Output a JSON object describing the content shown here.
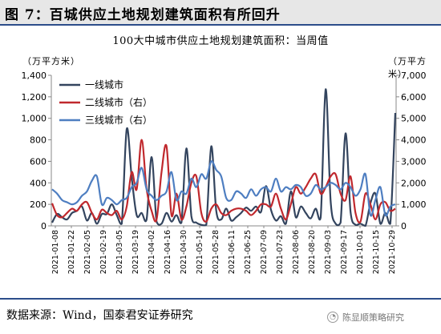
{
  "figure": {
    "title": "图 7：百城供应土地规划建筑面积有所回升",
    "source": "数据来源：Wind，国泰君安证券研究",
    "watermark": "陈显顺策略研究",
    "watermark_icon": "wechat-logo-icon"
  },
  "chart_data": {
    "type": "line",
    "title": "100大中城市供应土地规划建筑面积：当周值",
    "left_unit": "（万平方米）",
    "right_unit": "（万平方米）",
    "y_left": {
      "range": [
        0,
        1400
      ],
      "ticks": [
        "0",
        "200",
        "400",
        "600",
        "800",
        "1,000",
        "1,200",
        "1,400"
      ]
    },
    "y_right": {
      "range": [
        0,
        7000
      ],
      "ticks": [
        "0",
        "1,000",
        "2,000",
        "3,000",
        "4,000",
        "5,000",
        "6,000",
        "7,000"
      ]
    },
    "x_tick_labels": [
      "2021-01-08",
      "2021-01-22",
      "2021-02-05",
      "2021-02-19",
      "2021-03-05",
      "2021-03-19",
      "2021-04-02",
      "2021-04-16",
      "2021-04-30",
      "2021-05-14",
      "2021-05-28",
      "2021-06-11",
      "2021-06-25",
      "2021-07-09",
      "2021-07-23",
      "2021-08-06",
      "2021-08-20",
      "2021-09-03",
      "2021-09-17",
      "2021-10-01",
      "2021-10-15",
      "2021-10-29"
    ],
    "grid": false,
    "legend_position": "top-left-inside",
    "series": [
      {
        "name": "一线城市",
        "axis": "left",
        "color": "#33445e",
        "values": [
          30,
          110,
          80,
          60,
          120,
          140,
          180,
          50,
          120,
          20,
          110,
          110,
          200,
          100,
          20,
          900,
          450,
          100,
          120,
          60,
          640,
          40,
          20,
          120,
          40,
          100,
          30,
          720,
          90,
          30,
          10,
          10,
          740,
          140,
          60,
          160,
          50,
          80,
          120,
          170,
          140,
          180,
          130,
          370,
          150,
          50,
          90,
          20,
          320,
          80,
          180,
          120,
          70,
          160,
          80,
          1270,
          230,
          20,
          30,
          860,
          130,
          10,
          20,
          0,
          210,
          300,
          20,
          120,
          20,
          1050
        ]
      },
      {
        "name": "二线城市（右）",
        "axis": "right",
        "color": "#c0282d",
        "values": [
          1050,
          500,
          400,
          600,
          800,
          700,
          1000,
          1100,
          600,
          300,
          750,
          600,
          500,
          700,
          300,
          900,
          2500,
          1700,
          4000,
          1700,
          700,
          300,
          2500,
          3700,
          500,
          1500,
          300,
          900,
          2000,
          2300,
          600,
          200,
          800,
          1000,
          600,
          500,
          700,
          800,
          800,
          700,
          500,
          700,
          1000,
          1000,
          900,
          1500,
          800,
          300,
          1000,
          1800,
          1500,
          1800,
          2200,
          2400,
          1500,
          1800,
          2300,
          2400,
          1500,
          1200,
          2300,
          600,
          200,
          1500,
          1000,
          300,
          1000,
          1100,
          700,
          800
        ]
      },
      {
        "name": "三线城市（右）",
        "axis": "right",
        "color": "#4e7ec1",
        "values": [
          1700,
          1500,
          1200,
          1100,
          1000,
          1100,
          1400,
          1600,
          2100,
          2300,
          1000,
          1300,
          1200,
          1000,
          1200,
          1300,
          1800,
          2000,
          2700,
          1700,
          1400,
          1200,
          1400,
          1600,
          2500,
          1200,
          1600,
          1500,
          2200,
          1800,
          2400,
          2200,
          3000,
          2600,
          2300,
          1300,
          1200,
          1600,
          1500,
          1300,
          1700,
          1400,
          1700,
          1800,
          1600,
          2200,
          1600,
          1800,
          1700,
          1900,
          1800,
          1400,
          1500,
          1900,
          1700,
          1800,
          2000,
          1900,
          1700,
          2000,
          1800,
          1400,
          1700,
          2400,
          500,
          1200,
          1800,
          500,
          900,
          1000
        ]
      }
    ]
  }
}
